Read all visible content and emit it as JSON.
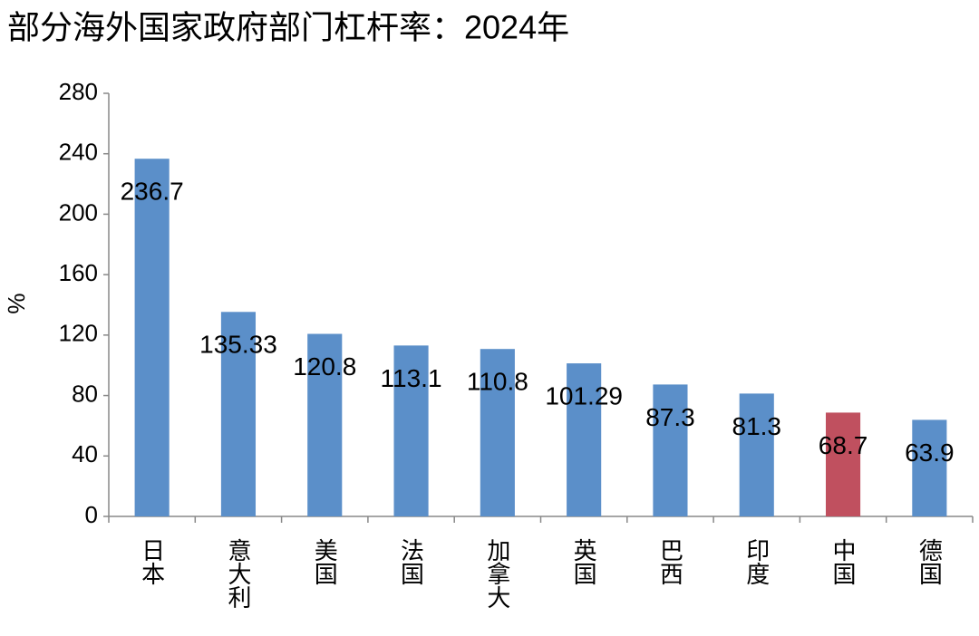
{
  "chart_data": {
    "type": "bar",
    "title": "部分海外国家政府部门杠杆率：2024年",
    "y_label": "%",
    "categories": [
      "日本",
      "意大利",
      "美国",
      "法国",
      "加拿大",
      "英国",
      "巴西",
      "印度",
      "中国",
      "德国"
    ],
    "values": [
      236.7,
      135.33,
      120.8,
      113.1,
      110.8,
      101.29,
      87.3,
      81.3,
      68.7,
      63.9
    ],
    "colors": [
      "#5b8fc9",
      "#5b8fc9",
      "#5b8fc9",
      "#5b8fc9",
      "#5b8fc9",
      "#5b8fc9",
      "#5b8fc9",
      "#5b8fc9",
      "#c0505f",
      "#5b8fc9"
    ],
    "ylim": [
      0,
      280
    ],
    "yticks": [
      0,
      40,
      80,
      120,
      160,
      200,
      240,
      280
    ],
    "grid": false
  }
}
